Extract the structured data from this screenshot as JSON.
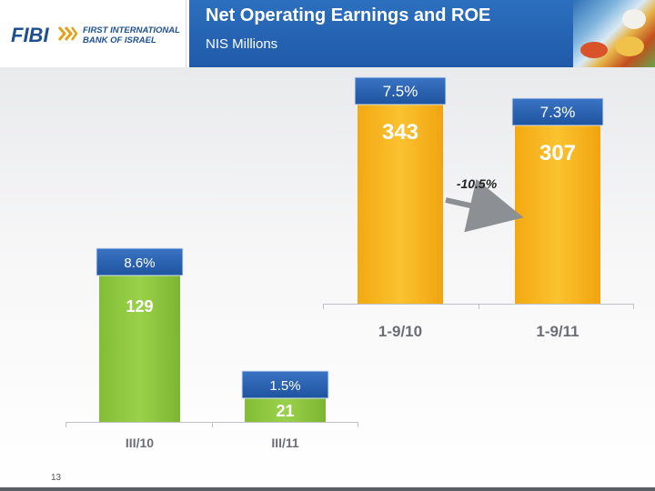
{
  "header": {
    "logo_text": "FIBI",
    "logo_line1": "FIRST INTERNATIONAL",
    "logo_line2": "BANK OF ISRAEL",
    "title": "Net Operating Earnings and ROE",
    "subtitle": "NIS Millions"
  },
  "footer": {
    "page_number": "13"
  },
  "colors": {
    "header_blue": "#1f5aa8",
    "bar_orange": "#f6b21b",
    "bar_green": "#8dc63f",
    "roe_box_blue": "#2a62b0"
  },
  "chart_data": [
    {
      "type": "bar",
      "title": "",
      "categories": [
        "1-9/10",
        "1-9/11"
      ],
      "series": [
        {
          "values": [
            343,
            307
          ]
        }
      ],
      "roe_labels": [
        "7.5%",
        "7.3%"
      ],
      "change_annotation": "-10.5%",
      "bar_color": "#f6b21b",
      "grid": false
    },
    {
      "type": "bar",
      "title": "",
      "categories": [
        "III/10",
        "III/11"
      ],
      "series": [
        {
          "values": [
            129,
            21
          ]
        }
      ],
      "roe_labels": [
        "8.6%",
        "1.5%"
      ],
      "bar_color": "#8dc63f",
      "grid": false
    }
  ]
}
